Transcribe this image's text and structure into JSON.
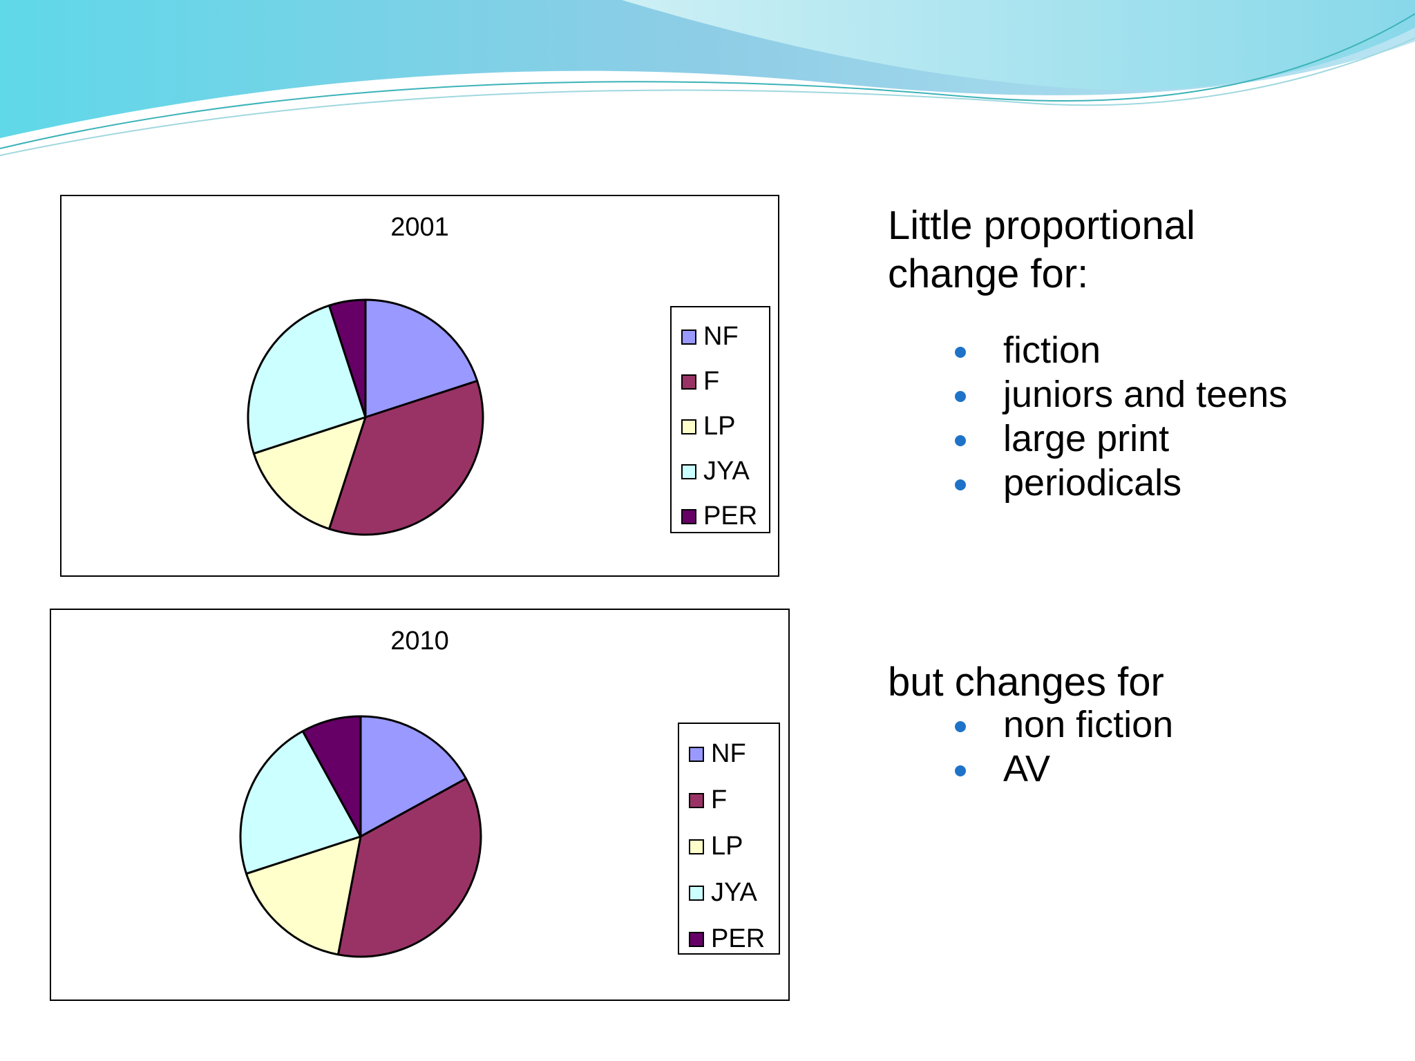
{
  "slide": {
    "colors": {
      "wave_light": "#c9f1f4",
      "wave_mid": "#8fd7e8",
      "wave_deep": "#5cc6e2",
      "bullet": "#1e73c9"
    },
    "panel_a": {
      "heading_line1": "Little proportional",
      "heading_line2": "change for:",
      "bullets": [
        "fiction",
        "juniors and teens",
        "large print",
        "periodicals"
      ]
    },
    "panel_b": {
      "heading": "but changes for",
      "bullets": [
        "non fiction",
        "AV"
      ]
    }
  },
  "chart_data": [
    {
      "type": "pie",
      "title": "2001",
      "legend_position": "right",
      "categories": [
        "NF",
        "F",
        "LP",
        "JYA",
        "PER"
      ],
      "values": [
        20,
        35,
        15,
        25,
        5
      ],
      "colors": [
        "#9999ff",
        "#993366",
        "#ffffcc",
        "#ccffff",
        "#660066"
      ]
    },
    {
      "type": "pie",
      "title": "2010",
      "legend_position": "right",
      "categories": [
        "NF",
        "F",
        "LP",
        "JYA",
        "PER"
      ],
      "values": [
        17,
        36,
        17,
        22,
        8
      ],
      "colors": [
        "#9999ff",
        "#993366",
        "#ffffcc",
        "#ccffff",
        "#660066"
      ]
    }
  ]
}
